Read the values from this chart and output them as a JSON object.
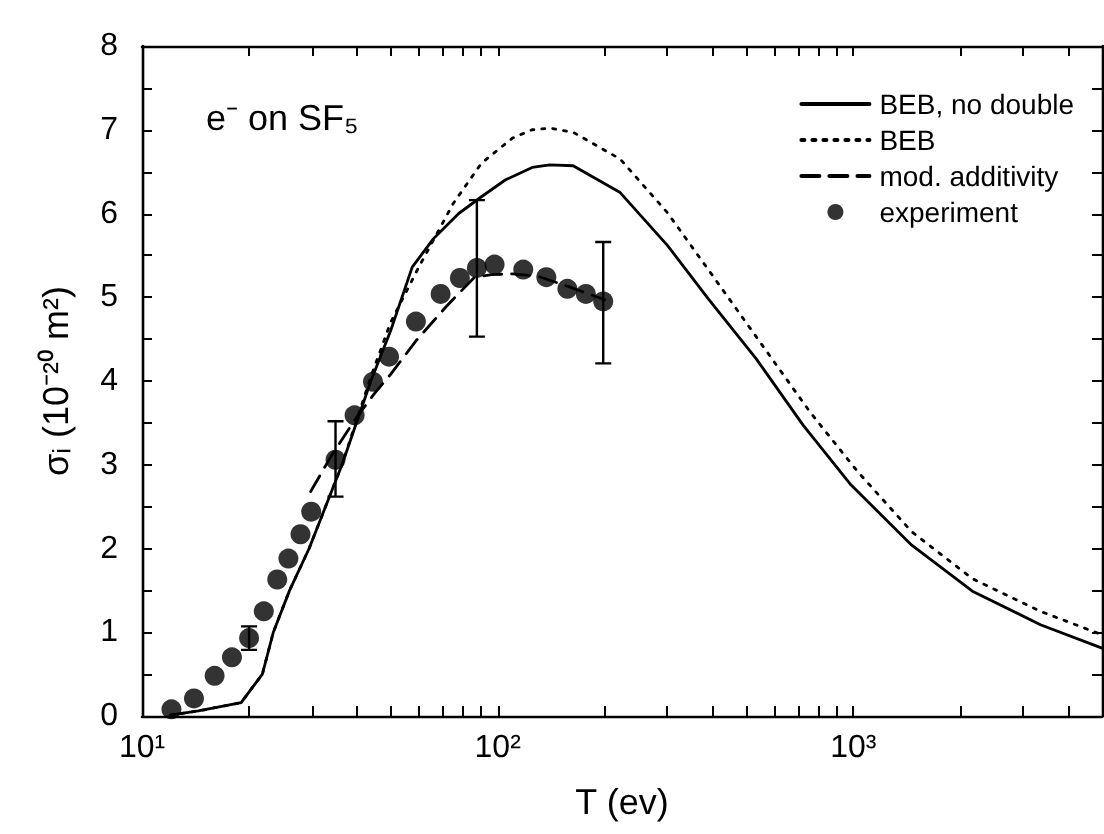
{
  "chart_data": {
    "type": "line",
    "xlabel": "T (ev)",
    "ylabel": "σᵢ (10⁻²⁰ m²)",
    "annotations": [
      "e⁻ on SF₅"
    ],
    "log": "x",
    "xlim": [
      10,
      5000
    ],
    "ylim": [
      0,
      8
    ],
    "xticks": [
      {
        "value": 10,
        "label": "10¹"
      },
      {
        "value": 20,
        "label": null
      },
      {
        "value": 30,
        "label": null
      },
      {
        "value": 40,
        "label": null
      },
      {
        "value": 50,
        "label": null
      },
      {
        "value": 60,
        "label": null
      },
      {
        "value": 70,
        "label": null
      },
      {
        "value": 80,
        "label": null
      },
      {
        "value": 90,
        "label": null
      },
      {
        "value": 100,
        "label": "10²"
      },
      {
        "value": 200,
        "label": null
      },
      {
        "value": 300,
        "label": null
      },
      {
        "value": 400,
        "label": null
      },
      {
        "value": 500,
        "label": null
      },
      {
        "value": 600,
        "label": null
      },
      {
        "value": 700,
        "label": null
      },
      {
        "value": 800,
        "label": null
      },
      {
        "value": 900,
        "label": null
      },
      {
        "value": 1000,
        "label": "10³"
      },
      {
        "value": 2000,
        "label": null
      },
      {
        "value": 3000,
        "label": null
      },
      {
        "value": 4000,
        "label": null
      }
    ],
    "yticks": [
      0,
      {
        "value": 0.5,
        "label": null
      },
      1,
      {
        "value": 1.5,
        "label": null
      },
      2,
      {
        "value": 2.5,
        "label": null
      },
      3,
      {
        "value": 3.5,
        "label": null
      },
      4,
      {
        "value": 4.5,
        "label": null
      },
      5,
      {
        "value": 5.5,
        "label": null
      },
      6,
      {
        "value": 6.5,
        "label": null
      },
      7,
      {
        "value": 7.5,
        "label": null
      },
      8
    ],
    "grid": false,
    "legend": "top right",
    "series": [
      {
        "name": "BEB, no double",
        "color": "#000000",
        "type": "line",
        "line_style": "solid",
        "marker": "none",
        "x": [
          12,
          14.4,
          19,
          21.8,
          23.4,
          26,
          29.5,
          36.5,
          44,
          50,
          57.5,
          66,
          77.7,
          90,
          105,
          125,
          140,
          163,
          221,
          300,
          391,
          532,
          723,
          984,
          1459,
          2161,
          3357,
          5000
        ],
        "values": [
          0.01,
          0.06,
          0.16,
          0.5,
          1,
          1.5,
          2,
          3,
          4,
          4.6,
          5.36,
          5.7,
          6,
          6.2,
          6.4,
          6.55,
          6.58,
          6.57,
          6.25,
          5.62,
          4.98,
          4.27,
          3.47,
          2.76,
          2.04,
          1.49,
          1.09,
          0.81
        ]
      },
      {
        "name": "BEB",
        "color": "#000000",
        "type": "line",
        "line_style": "dotted",
        "marker": "none",
        "x": [
          12,
          14.4,
          19,
          21.8,
          23.4,
          26,
          29.5,
          36.5,
          44,
          50,
          60,
          75,
          90,
          110,
          125,
          140,
          163,
          221,
          300,
          408,
          556,
          755,
          1027,
          1459,
          2161,
          3357,
          5000
        ],
        "values": [
          0.01,
          0.06,
          0.16,
          0.5,
          1,
          1.5,
          2,
          3,
          4.05,
          4.7,
          5.36,
          6.12,
          6.6,
          6.9,
          7.0,
          7.02,
          6.97,
          6.65,
          6.01,
          5.22,
          4.42,
          3.63,
          2.92,
          2.2,
          1.64,
          1.25,
          0.97
        ]
      },
      {
        "name": "mod. additivity",
        "color": "#000000",
        "type": "line",
        "line_style": "dashed",
        "marker": "none",
        "x": [
          29.8,
          34,
          39.7,
          45,
          50,
          59.2,
          71.7,
          86.1,
          96,
          110,
          130,
          160,
          200
        ],
        "values": [
          2.68,
          3.1,
          3.54,
          3.85,
          4.08,
          4.49,
          4.89,
          5.24,
          5.27,
          5.28,
          5.25,
          5.12,
          4.97
        ]
      },
      {
        "name": "experiment",
        "color": "#000000",
        "type": "scatter",
        "marker": "circle",
        "x": [
          12.1,
          14,
          16,
          17.9,
          20,
          22,
          24,
          25.8,
          27.9,
          29.9,
          35,
          39.6,
          44.6,
          49.5,
          58.9,
          69.1,
          78.3,
          87.4,
          98,
          118,
          137,
          157,
          177,
          198
        ],
        "values": [
          0.08,
          0.21,
          0.48,
          0.7,
          0.93,
          1.25,
          1.63,
          1.88,
          2.17,
          2.44,
          3.06,
          3.59,
          3.99,
          4.29,
          4.71,
          5.04,
          5.23,
          5.35,
          5.39,
          5.33,
          5.24,
          5.1,
          5.04,
          4.95
        ],
        "errors": [
          null,
          null,
          null,
          null,
          [
            0.79,
            1.07
          ],
          null,
          null,
          null,
          null,
          null,
          [
            2.62,
            3.52
          ],
          null,
          null,
          null,
          null,
          null,
          null,
          [
            4.53,
            6.16
          ],
          null,
          null,
          null,
          null,
          null,
          [
            4.21,
            5.66
          ]
        ]
      }
    ]
  }
}
